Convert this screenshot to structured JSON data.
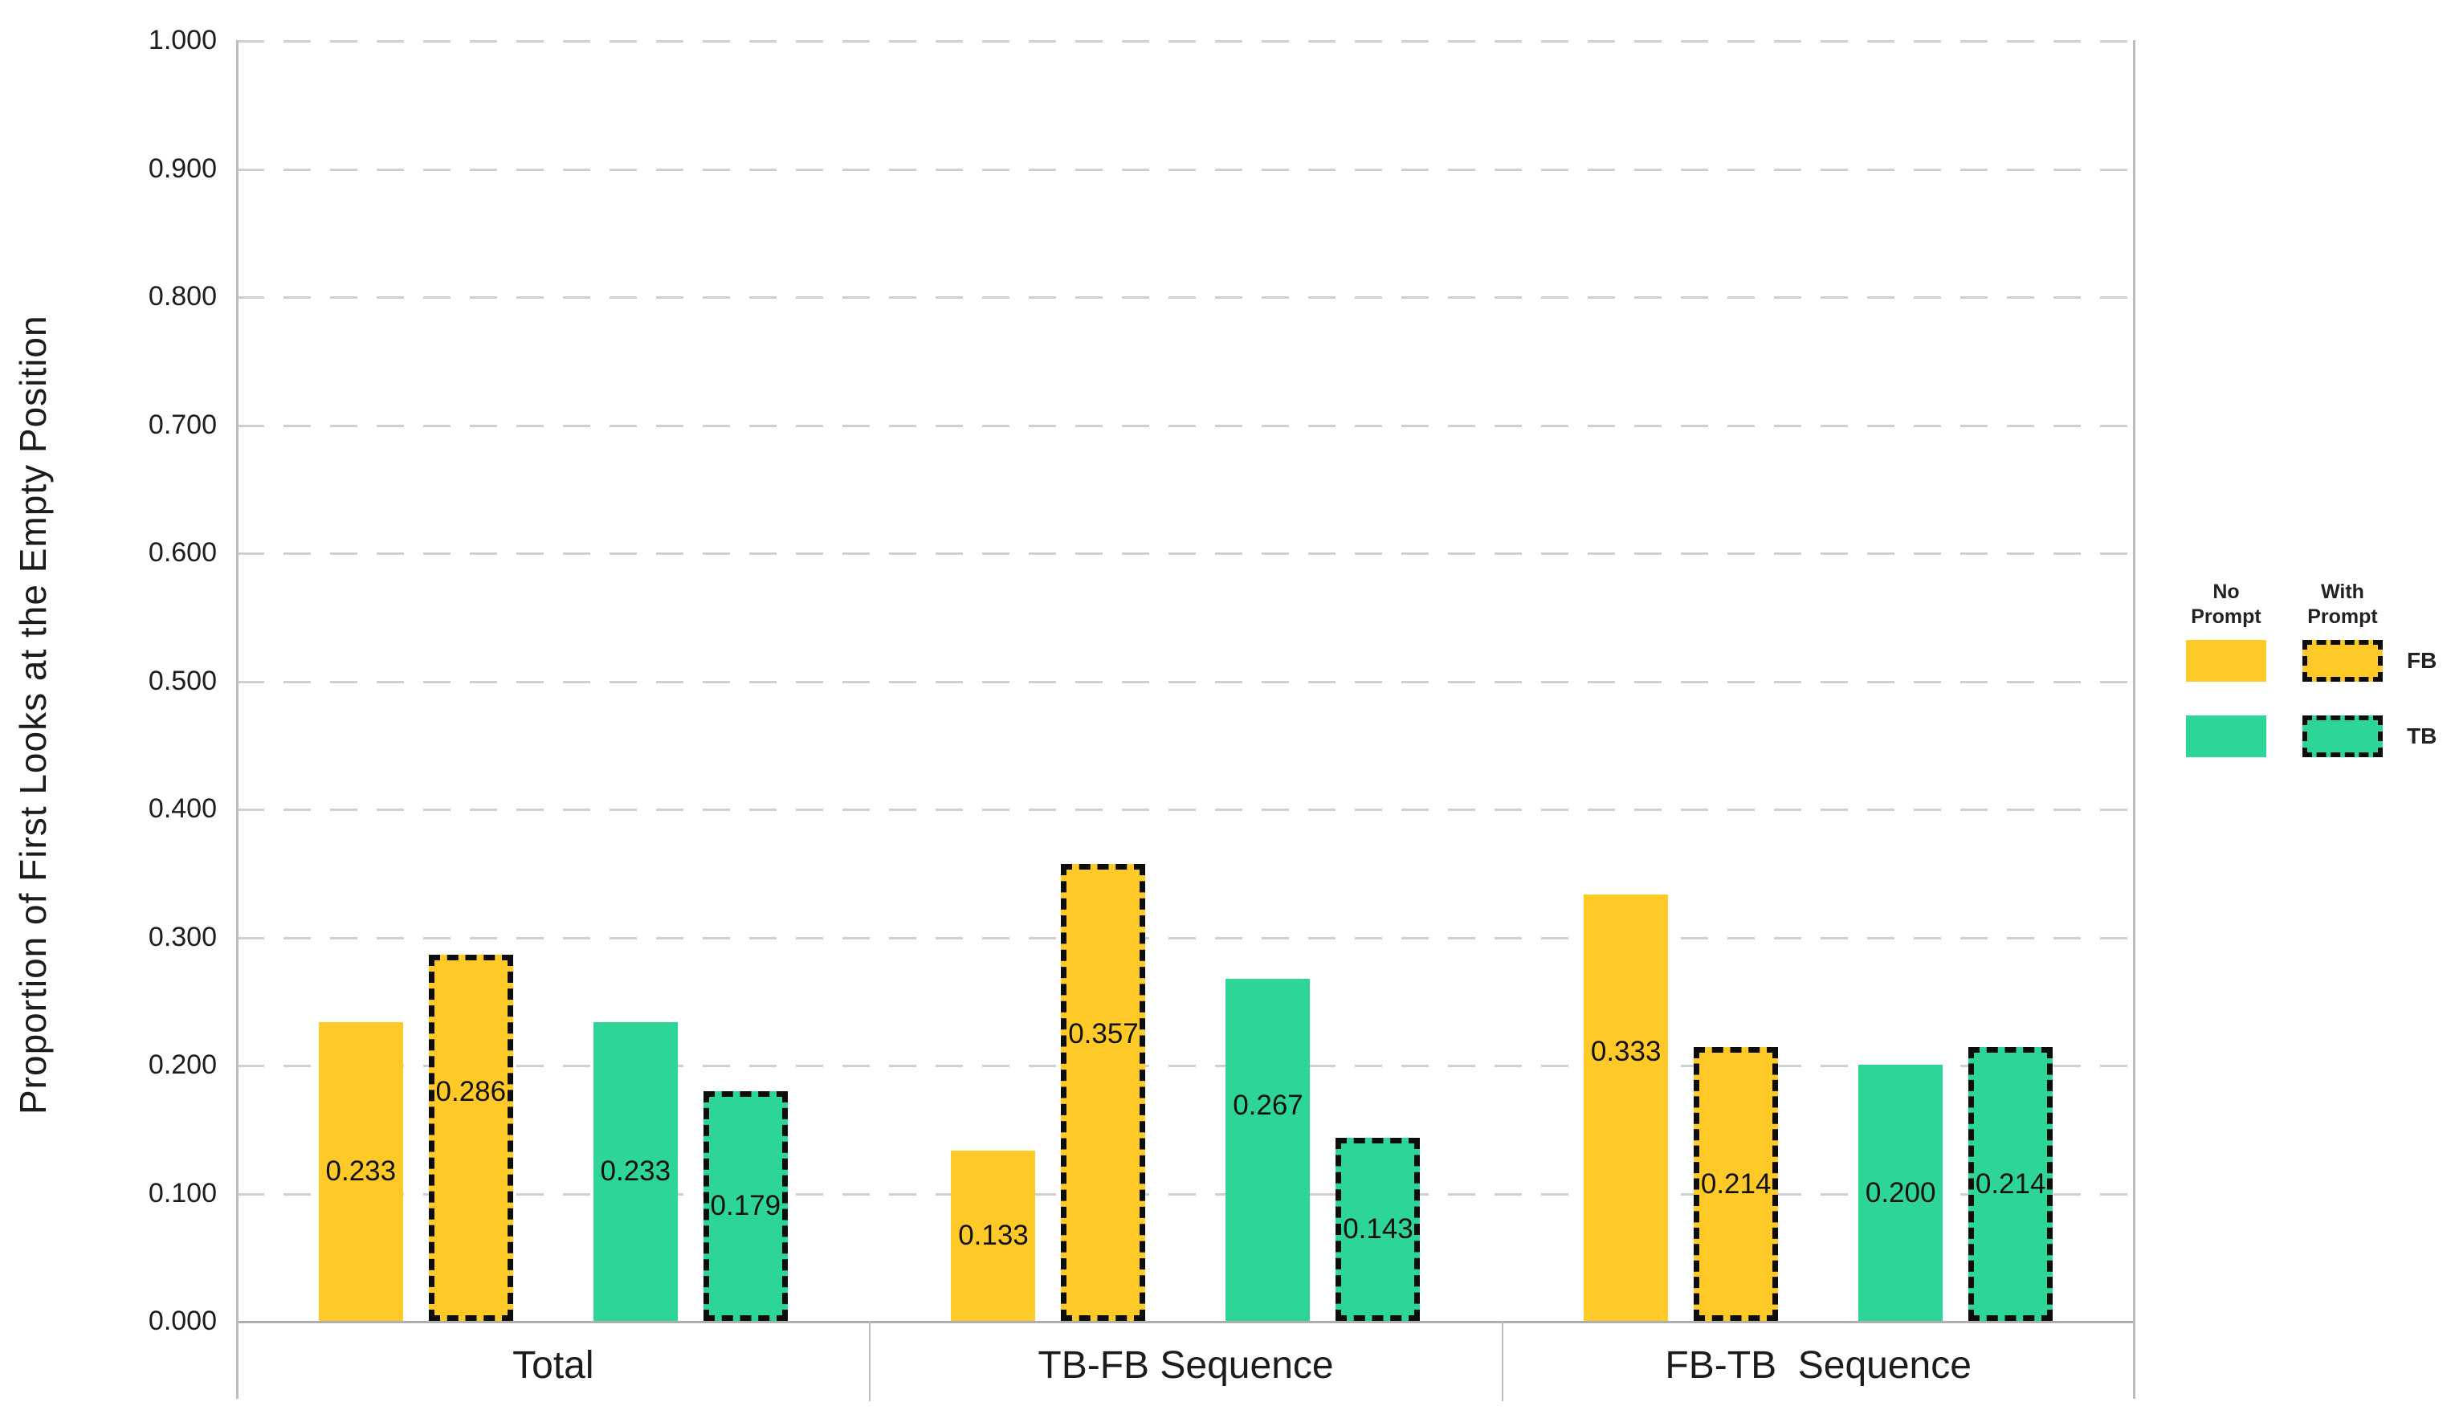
{
  "chart_data": {
    "type": "bar",
    "title": "",
    "ylabel": "Proportion of First Looks at the Empty Position",
    "xlabel": "",
    "ylim": [
      0,
      1
    ],
    "ytick_step": 0.1,
    "yticks": [
      "1.000",
      "0.900",
      "0.800",
      "0.700",
      "0.600",
      "0.500",
      "0.400",
      "0.300",
      "0.200",
      "0.100",
      "0.000"
    ],
    "categories": [
      "Total",
      "TB-FB Sequence",
      "FB-TB  Sequence"
    ],
    "series": [
      {
        "name": "FB No Prompt",
        "condition": "FB",
        "prompt": "No Prompt",
        "style": "solid",
        "color": "#FFCA28",
        "values": [
          0.233,
          0.133,
          0.333
        ],
        "labels": [
          "0.233",
          "0.133",
          "0.333"
        ]
      },
      {
        "name": "FB With Prompt",
        "condition": "FB",
        "prompt": "With Prompt",
        "style": "dashed",
        "color": "#FFCA28",
        "values": [
          0.286,
          0.357,
          0.214
        ],
        "labels": [
          "0.286",
          "0.357",
          "0.214"
        ]
      },
      {
        "name": "TB No Prompt",
        "condition": "TB",
        "prompt": "No Prompt",
        "style": "solid",
        "color": "#2DD696",
        "values": [
          0.233,
          0.267,
          0.2
        ],
        "labels": [
          "0.233",
          "0.267",
          "0.200"
        ]
      },
      {
        "name": "TB With Prompt",
        "condition": "TB",
        "prompt": "With Prompt",
        "style": "dashed",
        "color": "#2DD696",
        "values": [
          0.179,
          0.143,
          0.214
        ],
        "labels": [
          "0.179",
          "0.143",
          "0.214"
        ]
      }
    ],
    "legend": {
      "position": "right",
      "col_headers": [
        "No Prompt",
        "With Prompt"
      ],
      "row_labels": [
        "FB",
        "TB"
      ]
    },
    "grid": "horizontal dashed gridlines at every 0.100",
    "colors": {
      "fb": "#FFCA28",
      "tb": "#2DD696",
      "gridline": "#cfcfcf",
      "baseline": "#aeaeae",
      "axis": "#bdbdbd",
      "text": "#1c1c1c",
      "dash_border": "#0d0d0d"
    }
  }
}
